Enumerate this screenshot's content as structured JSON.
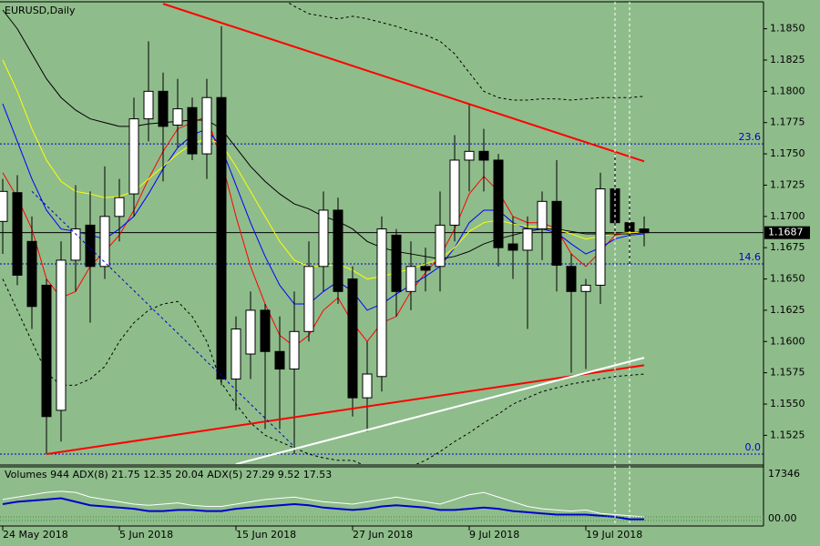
{
  "chart_data": {
    "type": "candlestick",
    "title": "EURUSD,Daily",
    "background": "#8fbc8b",
    "categories": [
      "24 May 2018",
      null,
      null,
      null,
      null,
      null,
      null,
      null,
      "5 Jun 2018",
      null,
      null,
      null,
      null,
      null,
      null,
      null,
      "15 Jun 2018",
      null,
      null,
      null,
      null,
      null,
      null,
      null,
      "27 Jun 2018",
      null,
      null,
      null,
      null,
      null,
      null,
      null,
      "9 Jul 2018",
      null,
      null,
      null,
      null,
      null,
      null,
      null,
      "19 Jul 2018",
      null,
      null,
      null,
      null
    ],
    "open": [
      1.1696,
      1.1719,
      1.168,
      1.1645,
      1.1545,
      1.1665,
      1.1693,
      1.166,
      1.17,
      1.1718,
      1.1778,
      1.18,
      1.1773,
      1.1787,
      1.175,
      1.1795,
      1.157,
      1.159,
      1.1625,
      1.1592,
      1.1578,
      1.1608,
      1.166,
      1.1705,
      1.165,
      1.1555,
      1.1572,
      1.1685,
      1.164,
      1.166,
      1.166,
      1.1693,
      1.1745,
      1.1752,
      1.1745,
      1.1678,
      1.1673,
      1.169,
      1.1712,
      1.166,
      1.164,
      1.1645,
      1.1722,
      1.1695,
      1.169
    ],
    "high": [
      1.173,
      1.1733,
      1.17,
      1.165,
      1.168,
      1.1725,
      1.172,
      1.174,
      1.173,
      1.1795,
      1.184,
      1.1815,
      1.181,
      1.1795,
      1.181,
      1.1852,
      1.162,
      1.164,
      1.163,
      1.162,
      1.164,
      1.168,
      1.172,
      1.1715,
      1.166,
      1.16,
      1.17,
      1.169,
      1.168,
      1.1675,
      1.172,
      1.1765,
      1.179,
      1.177,
      1.175,
      1.17,
      1.17,
      1.172,
      1.1745,
      1.167,
      1.165,
      1.1735,
      1.175,
      1.1718,
      1.17
    ],
    "low": [
      1.167,
      1.1645,
      1.161,
      1.151,
      1.152,
      1.164,
      1.1615,
      1.165,
      1.168,
      1.17,
      1.176,
      1.1728,
      1.1755,
      1.1745,
      1.173,
      1.1565,
      1.1545,
      1.157,
      1.153,
      1.153,
      1.151,
      1.16,
      1.164,
      1.163,
      1.154,
      1.1528,
      1.156,
      1.162,
      1.1625,
      1.164,
      1.164,
      1.168,
      1.172,
      1.172,
      1.166,
      1.165,
      1.161,
      1.1665,
      1.164,
      1.1575,
      1.1578,
      1.163,
      1.1685,
      1.166,
      1.1676
    ],
    "close": [
      1.172,
      1.1653,
      1.1628,
      1.154,
      1.1665,
      1.169,
      1.166,
      1.17,
      1.1715,
      1.1778,
      1.18,
      1.1772,
      1.1786,
      1.175,
      1.1795,
      1.157,
      1.161,
      1.1625,
      1.1592,
      1.1578,
      1.1608,
      1.166,
      1.1705,
      1.164,
      1.1555,
      1.1574,
      1.169,
      1.164,
      1.166,
      1.1657,
      1.1693,
      1.1745,
      1.1752,
      1.1745,
      1.1675,
      1.1673,
      1.169,
      1.1712,
      1.1661,
      1.164,
      1.1645,
      1.1722,
      1.1695,
      1.1688,
      1.1687
    ],
    "up_color": "#ffffff",
    "down_color": "#000000",
    "series": [
      {
        "color": "#ff0000",
        "values": [
          1.1735,
          1.1715,
          1.169,
          1.165,
          1.1635,
          1.164,
          1.166,
          1.1672,
          1.1685,
          1.1705,
          1.173,
          1.1752,
          1.177,
          1.1775,
          1.178,
          1.1745,
          1.17,
          1.166,
          1.163,
          1.1605,
          1.1596,
          1.1605,
          1.1625,
          1.1635,
          1.1615,
          1.16,
          1.1615,
          1.162,
          1.164,
          1.1655,
          1.1668,
          1.169,
          1.1718,
          1.1732,
          1.172,
          1.17,
          1.1695,
          1.1695,
          1.169,
          1.167,
          1.166,
          1.1672,
          1.1685,
          1.1687,
          1.1688
        ]
      },
      {
        "color": "#0000ff",
        "values": [
          1.179,
          1.176,
          1.173,
          1.1705,
          1.169,
          1.1688,
          1.1685,
          1.1682,
          1.169,
          1.17,
          1.1718,
          1.1738,
          1.1755,
          1.1765,
          1.177,
          1.1755,
          1.1725,
          1.1695,
          1.1668,
          1.1645,
          1.163,
          1.163,
          1.164,
          1.1648,
          1.164,
          1.1625,
          1.163,
          1.1638,
          1.1645,
          1.1652,
          1.166,
          1.1675,
          1.1695,
          1.1705,
          1.1705,
          1.1695,
          1.169,
          1.169,
          1.1687,
          1.1678,
          1.167,
          1.1675,
          1.1682,
          1.1685,
          1.1686
        ]
      },
      {
        "color": "#ffff00",
        "values": [
          1.1825,
          1.18,
          1.177,
          1.1745,
          1.1728,
          1.172,
          1.1718,
          1.1715,
          1.1716,
          1.172,
          1.173,
          1.174,
          1.175,
          1.1758,
          1.1762,
          1.1758,
          1.174,
          1.172,
          1.17,
          1.168,
          1.1665,
          1.166,
          1.166,
          1.1662,
          1.1657,
          1.165,
          1.1652,
          1.1655,
          1.1658,
          1.1662,
          1.1666,
          1.1675,
          1.1688,
          1.1695,
          1.1697,
          1.1694,
          1.1692,
          1.1692,
          1.169,
          1.1686,
          1.1682,
          1.1684,
          1.1686,
          1.1687,
          1.1687
        ]
      },
      {
        "color": "#000000",
        "values": [
          1.1865,
          1.185,
          1.183,
          1.181,
          1.1795,
          1.1785,
          1.1778,
          1.1775,
          1.1772,
          1.1772,
          1.1774,
          1.1775,
          1.1776,
          1.1777,
          1.1777,
          1.177,
          1.1755,
          1.174,
          1.1728,
          1.1718,
          1.171,
          1.1706,
          1.17,
          1.1696,
          1.169,
          1.168,
          1.1675,
          1.1672,
          1.167,
          1.1668,
          1.1666,
          1.1668,
          1.1672,
          1.1678,
          1.1682,
          1.1685,
          1.1688,
          1.169,
          1.169,
          1.1688,
          1.1686,
          1.1686,
          1.1686,
          1.1686,
          1.1687
        ]
      },
      {
        "color": "#000000",
        "dashed": true,
        "values": [
          null,
          null,
          null,
          null,
          null,
          null,
          null,
          null,
          null,
          null,
          null,
          null,
          null,
          null,
          null,
          null,
          null,
          null,
          null,
          1.1875,
          1.1868,
          1.1862,
          1.186,
          1.1858,
          1.186,
          1.1858,
          1.1855,
          1.1852,
          1.1848,
          1.1845,
          1.184,
          1.183,
          1.1815,
          1.18,
          1.1795,
          1.1793,
          1.1793,
          1.1794,
          1.1794,
          1.1793,
          1.1794,
          1.1795,
          1.1795,
          1.1795,
          1.1796
        ]
      },
      {
        "color": "#000000",
        "dashed": true,
        "values": [
          1.165,
          1.1625,
          1.16,
          1.1575,
          1.1565,
          1.1565,
          1.157,
          1.158,
          1.16,
          1.1615,
          1.1625,
          1.163,
          1.1632,
          1.162,
          1.16,
          1.1567,
          1.155,
          1.1535,
          1.1525,
          1.152,
          1.1515,
          1.151,
          1.1507,
          1.1505,
          1.1505,
          1.15,
          1.1498,
          1.1498,
          1.15,
          1.1505,
          1.1512,
          1.152,
          1.1527,
          1.1535,
          1.1542,
          1.155,
          1.1555,
          1.156,
          1.1563,
          1.1566,
          1.1568,
          1.157,
          1.1572,
          1.1573,
          1.1574
        ]
      }
    ],
    "trendlines": [
      {
        "color": "#ff0000",
        "width": 2,
        "x": [
          11,
          44
        ],
        "y": [
          1.187,
          1.1744
        ]
      },
      {
        "color": "#ff0000",
        "width": 2,
        "x": [
          3,
          44
        ],
        "y": [
          1.151,
          1.1581
        ]
      },
      {
        "color": "#ffffff",
        "width": 2,
        "x": [
          16,
          44
        ],
        "y": [
          1.1502,
          1.1587
        ]
      },
      {
        "color": "#0000cc",
        "width": 1,
        "dashed": true,
        "x": [
          2,
          20
        ],
        "y": [
          1.172,
          1.1516
        ]
      }
    ],
    "levels": [
      {
        "label": "23.6",
        "price": 1.1758
      },
      {
        "label": "14.6",
        "price": 1.1662
      },
      {
        "label": "0.0",
        "price": 1.151
      }
    ],
    "level_color": "#0000cc",
    "last_price": 1.1687,
    "ylim": [
      1.1502,
      1.1873
    ],
    "yticks": [
      {
        "value": 1.1525,
        "label": "1.1525"
      },
      {
        "value": 1.155,
        "label": "1.1550"
      },
      {
        "value": 1.1575,
        "label": "1.1575"
      },
      {
        "value": 1.16,
        "label": "1.1600"
      },
      {
        "value": 1.1625,
        "label": "1.1625"
      },
      {
        "value": 1.165,
        "label": "1.1650"
      },
      {
        "value": 1.1675,
        "label": "1.1675"
      },
      {
        "value": 1.17,
        "label": "1.1700"
      },
      {
        "value": 1.1725,
        "label": "1.1725"
      },
      {
        "value": 1.175,
        "label": "1.1750"
      },
      {
        "value": 1.1775,
        "label": "1.1775"
      },
      {
        "value": 1.18,
        "label": "1.1800"
      },
      {
        "value": 1.1825,
        "label": "1.1825"
      },
      {
        "value": 1.185,
        "label": "1.1850"
      }
    ],
    "pane": {
      "label": "Volumes 944 ADX(8) 21.75 12.35 20.04 ADX(5) 27.29 9.52 17.53",
      "tick_labels": [
        "17346",
        "00.00"
      ],
      "ylim": [
        0,
        50
      ],
      "series": [
        {
          "color": "#ffffff",
          "values": [
            22,
            24,
            26,
            28,
            29,
            28,
            24,
            22,
            20,
            18,
            17,
            18,
            19,
            17,
            16,
            16,
            18,
            20,
            22,
            23,
            24,
            22,
            20,
            19,
            18,
            20,
            22,
            24,
            22,
            20,
            18,
            22,
            26,
            28,
            24,
            20,
            16,
            14,
            13,
            12,
            13,
            10,
            9,
            8,
            7
          ]
        },
        {
          "color": "#0000cc",
          "values": [
            18,
            20,
            21,
            22,
            23,
            20,
            17,
            16,
            15,
            14,
            12,
            12,
            13,
            13,
            12,
            12,
            14,
            15,
            16,
            17,
            18,
            17,
            15,
            14,
            13,
            14,
            16,
            17,
            16,
            15,
            13,
            13,
            14,
            15,
            14,
            12,
            11,
            10,
            9,
            9,
            9,
            8,
            7,
            5,
            5
          ]
        }
      ]
    }
  }
}
